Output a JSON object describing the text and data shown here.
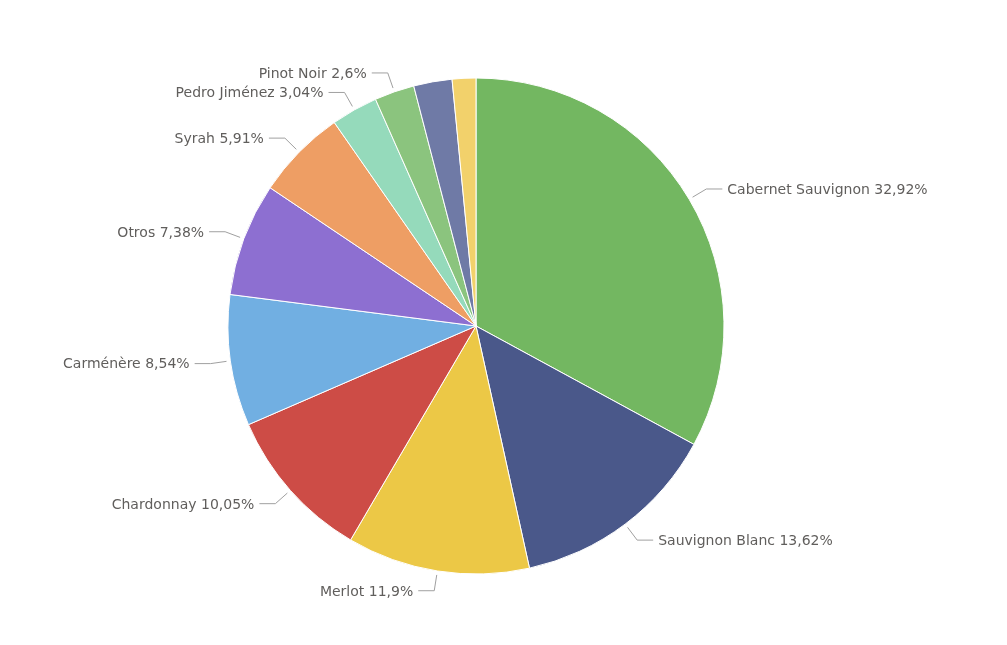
{
  "chart_data": {
    "type": "pie",
    "categories": [
      "Cabernet Sauvignon",
      "Sauvignon Blanc",
      "Merlot",
      "Chardonnay",
      "Carménère",
      "Otros",
      "Syrah",
      "Pedro Jiménez",
      "Pinot Noir",
      null,
      null
    ],
    "values": [
      32.92,
      13.62,
      11.9,
      10.05,
      8.54,
      7.38,
      5.91,
      3.04,
      2.6,
      2.5,
      1.54
    ],
    "value_labels": [
      "32,92%",
      "13,62%",
      "11,9%",
      "10,05%",
      "8,54%",
      "7,38%",
      "5,91%",
      "3,04%",
      "2,6%",
      null,
      null
    ],
    "colors": [
      "#73b761",
      "#4a588a",
      "#ecc846",
      "#cd4c46",
      "#71afe2",
      "#8d6fd1",
      "#ee9e64",
      "#95dabb",
      "#8bc47e",
      "#6f7aa6",
      "#f2d16b"
    ]
  }
}
